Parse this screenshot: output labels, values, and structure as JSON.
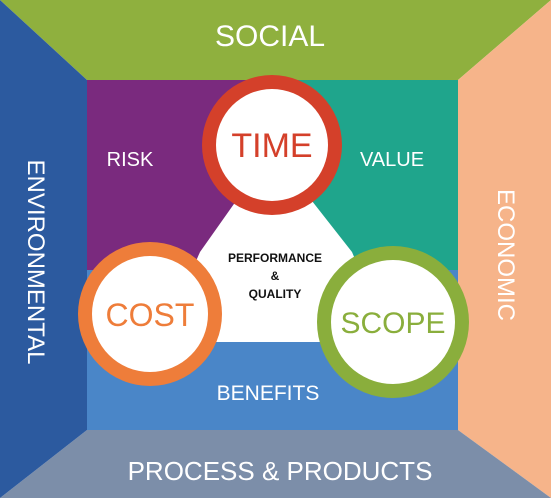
{
  "frame": {
    "top": {
      "label": "SOCIAL",
      "color": "#8fb03e"
    },
    "right": {
      "label": "ECONOMIC",
      "color": "#f6b48a"
    },
    "bottom": {
      "label": "PROCESS & PRODUCTS",
      "color": "#7c8ea9"
    },
    "left": {
      "label": "ENVIRONMENTAL",
      "color": "#2c5a9f"
    }
  },
  "inner": {
    "risk": {
      "label": "RISK",
      "color": "#7a2a7e"
    },
    "value": {
      "label": "VALUE",
      "color": "#1fa58c"
    },
    "benefits": {
      "label": "BENEFITS",
      "color": "#4a86c8"
    },
    "center": {
      "line1": "PERFORMANCE",
      "line2": "&",
      "line3": "QUALITY",
      "color": "#ffffff"
    }
  },
  "circles": {
    "time": {
      "label": "TIME",
      "ring_color": "#d4402a"
    },
    "cost": {
      "label": "COST",
      "ring_color": "#ee7d3a"
    },
    "scope": {
      "label": "SCOPE",
      "ring_color": "#8aae3c"
    }
  }
}
